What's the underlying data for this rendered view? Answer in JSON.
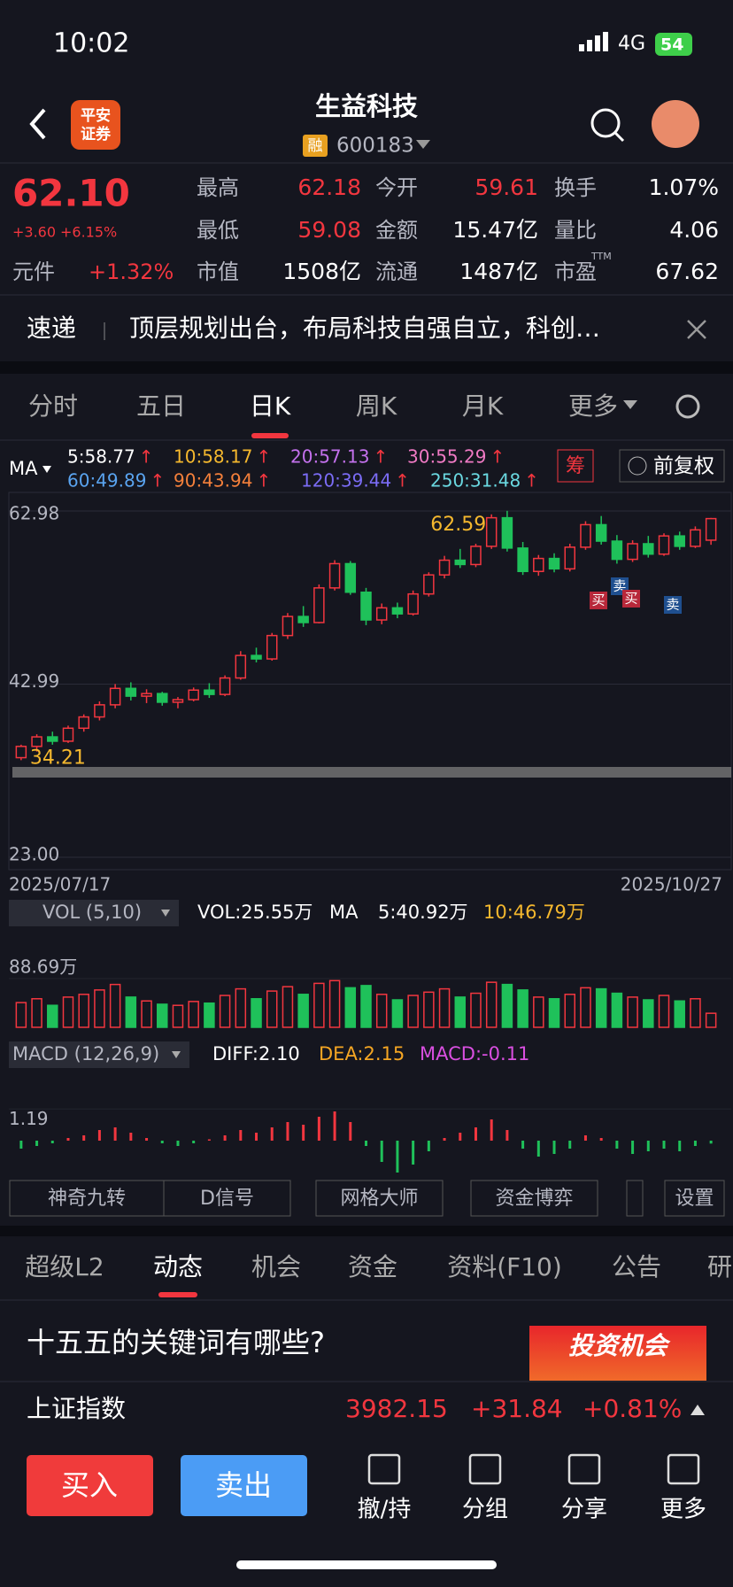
{
  "status_bar": {
    "time": "10:02",
    "network": "4G",
    "battery": "54"
  },
  "header": {
    "logo_top": "平安",
    "logo_bottom": "证券",
    "title": "生益科技",
    "margin_tag": "融",
    "code": "600183"
  },
  "quote": {
    "price": "62.10",
    "change": "+3.60",
    "change_pct": "+6.15%",
    "sector": "元件",
    "sector_change": "+1.32%",
    "stats": [
      {
        "label": "最高",
        "value": "62.18",
        "color": "#f2363f"
      },
      {
        "label": "今开",
        "value": "59.61",
        "color": "#f2363f"
      },
      {
        "label": "换手",
        "value": "1.07%",
        "color": "#ffffff"
      },
      {
        "label": "最低",
        "value": "59.08",
        "color": "#f2363f"
      },
      {
        "label": "金额",
        "value": "15.47亿",
        "color": "#ffffff"
      },
      {
        "label": "量比",
        "value": "4.06",
        "color": "#ffffff"
      },
      {
        "label": "市值",
        "value": "1508亿",
        "color": "#ffffff"
      },
      {
        "label": "流通",
        "value": "1487亿",
        "color": "#ffffff"
      },
      {
        "label": "市盈",
        "value": "67.62",
        "color": "#ffffff"
      }
    ],
    "pe_superscript": "TTM"
  },
  "news": {
    "tag": "速递",
    "text": "顶层规划出台，布局科技自强自立，科创…"
  },
  "chart_tabs": {
    "items": [
      "分时",
      "五日",
      "日K",
      "周K",
      "月K",
      "更多"
    ],
    "active": 2
  },
  "ma_legend": {
    "label": "MA",
    "items": [
      {
        "text": "5:58.77",
        "color": "#ffffff",
        "arrow": "↑"
      },
      {
        "text": "10:58.17",
        "color": "#f5b82e",
        "arrow": "↑"
      },
      {
        "text": "20:57.13",
        "color": "#c471ed",
        "arrow": "↑"
      },
      {
        "text": "30:55.29",
        "color": "#f07ac4",
        "arrow": "↑"
      },
      {
        "text": "60:49.89",
        "color": "#5aa4f0",
        "arrow": "↑"
      },
      {
        "text": "90:43.94",
        "color": "#f5803b",
        "arrow": "↑"
      },
      {
        "text": "120:39.44",
        "color": "#7b6cf5",
        "arrow": "↑"
      },
      {
        "text": "250:31.48",
        "color": "#6ad8e0",
        "arrow": "↑"
      }
    ],
    "chip": "筹",
    "adjust": "前复权"
  },
  "chart_data": [
    {
      "type": "candlestick",
      "up_color": "#f2363f",
      "down_color": "#1fc15a",
      "ylim": [
        23,
        62.98
      ],
      "yticks": [
        62.98,
        42.99,
        {
          "value": 23,
          "label": "23.00"
        }
      ],
      "x_start": "2025/07/17",
      "x_end": "2025/10/27",
      "high_label": 62.59,
      "low_label": 34.21,
      "label_color": "#f5b82e",
      "signals": [
        {
          "text": "卖",
          "color": "#1f4f8f"
        },
        {
          "text": "买",
          "color": "#b8283a"
        },
        {
          "text": "买",
          "color": "#b8283a"
        },
        {
          "text": "卖",
          "color": "#1f4f8f"
        }
      ],
      "ohlc": [
        [
          34.5,
          36,
          34.21,
          35.8
        ],
        [
          35.8,
          37.2,
          35.2,
          36.9
        ],
        [
          36.9,
          37.5,
          36,
          36.4
        ],
        [
          36.4,
          38.2,
          36.2,
          37.9
        ],
        [
          37.9,
          39.5,
          37.5,
          39.2
        ],
        [
          39.2,
          41,
          38.8,
          40.6
        ],
        [
          40.6,
          43,
          40.2,
          42.5
        ],
        [
          42.5,
          43.2,
          41.1,
          41.6
        ],
        [
          41.6,
          42.4,
          40.8,
          41.9
        ],
        [
          41.9,
          42.1,
          40.5,
          40.9
        ],
        [
          40.9,
          41.5,
          40.2,
          41.2
        ],
        [
          41.2,
          42.6,
          41,
          42.3
        ],
        [
          42.3,
          43.1,
          41.4,
          41.8
        ],
        [
          41.8,
          44,
          41.6,
          43.7
        ],
        [
          43.7,
          46.8,
          43.5,
          46.3
        ],
        [
          46.3,
          47.2,
          45.5,
          45.9
        ],
        [
          45.9,
          48.9,
          45.7,
          48.6
        ],
        [
          48.6,
          51.2,
          48.2,
          50.8
        ],
        [
          50.8,
          52,
          49.6,
          50.1
        ],
        [
          50.1,
          54.5,
          50,
          54.1
        ],
        [
          54.1,
          57.3,
          53.8,
          56.9
        ],
        [
          56.9,
          57.2,
          53.3,
          53.6
        ],
        [
          53.6,
          54.1,
          49.8,
          50.4
        ],
        [
          50.4,
          52.3,
          49.9,
          51.8
        ],
        [
          51.8,
          52.4,
          50.6,
          51.1
        ],
        [
          51.1,
          53.8,
          50.9,
          53.4
        ],
        [
          53.4,
          55.9,
          53.1,
          55.6
        ],
        [
          55.6,
          57.8,
          55.2,
          57.3
        ],
        [
          57.3,
          58.6,
          56.4,
          56.8
        ],
        [
          56.8,
          59.2,
          56.5,
          58.9
        ],
        [
          58.9,
          62.59,
          58.6,
          62.2
        ],
        [
          62.2,
          63,
          58.3,
          58.7
        ],
        [
          58.7,
          59.4,
          55.6,
          56
        ],
        [
          56,
          57.9,
          55.5,
          57.5
        ],
        [
          57.5,
          58.1,
          55.9,
          56.3
        ],
        [
          56.3,
          59.2,
          56,
          58.8
        ],
        [
          58.8,
          61.8,
          58.5,
          61.4
        ],
        [
          61.4,
          62.4,
          59.1,
          59.5
        ],
        [
          59.5,
          60.2,
          56.9,
          57.4
        ],
        [
          57.4,
          59.6,
          57.1,
          59.2
        ],
        [
          59.2,
          60.1,
          57.6,
          58
        ],
        [
          58,
          60.4,
          57.8,
          60.1
        ],
        [
          60.1,
          60.6,
          58.5,
          58.9
        ],
        [
          58.9,
          61.2,
          58.7,
          60.8
        ],
        [
          59.61,
          62.18,
          59.08,
          62.1
        ]
      ]
    },
    {
      "type": "bar",
      "indicator": "VOL (5,10)",
      "readout": "VOL:25.55万",
      "ma_label": "MA",
      "ma5": "5:40.92万",
      "ma10": "10:46.79万",
      "ma10_color": "#f5b82e",
      "up_color": "#f2363f",
      "down_color": "#1fc15a",
      "ylim": [
        0,
        100
      ],
      "yticks": [
        {
          "value": 88.69,
          "label": "88.69万"
        }
      ],
      "values": [
        45,
        52,
        40,
        55,
        60,
        68,
        78,
        55,
        48,
        42,
        40,
        47,
        44,
        58,
        70,
        52,
        66,
        74,
        60,
        80,
        85,
        72,
        76,
        60,
        50,
        58,
        64,
        70,
        55,
        62,
        82,
        78,
        68,
        55,
        52,
        60,
        72,
        70,
        62,
        55,
        50,
        58,
        48,
        52,
        25.55
      ]
    },
    {
      "type": "bar",
      "indicator": "MACD (12,26,9)",
      "diff": "DIFF:2.10",
      "dea": "DEA:2.15",
      "macd": "MACD:-0.11",
      "diff_color": "#ffffff",
      "dea_color": "#f5a623",
      "macd_color": "#d94fe0",
      "up_color": "#f2363f",
      "down_color": "#1fc15a",
      "ylim": [
        -1.6,
        1.6
      ],
      "yticks": [
        1.19
      ],
      "values": [
        -0.3,
        -0.2,
        -0.1,
        0.1,
        0.2,
        0.4,
        0.5,
        0.3,
        0.1,
        -0.1,
        -0.2,
        -0.1,
        0.05,
        0.2,
        0.4,
        0.3,
        0.5,
        0.7,
        0.6,
        0.9,
        1.1,
        0.7,
        -0.2,
        -0.8,
        -1.2,
        -0.9,
        -0.4,
        0.1,
        0.3,
        0.5,
        0.8,
        0.4,
        -0.3,
        -0.6,
        -0.5,
        -0.3,
        0.2,
        0.1,
        -0.3,
        -0.5,
        -0.4,
        -0.3,
        -0.4,
        -0.2,
        -0.11
      ]
    }
  ],
  "tools": [
    "神奇九转",
    "D信号",
    "网格大师",
    "资金博弈",
    "设置"
  ],
  "info_tabs": {
    "items": [
      "超级L2",
      "动态",
      "机会",
      "资金",
      "资料(F10)",
      "公告",
      "研"
    ],
    "active": 1
  },
  "feed": {
    "headline": "十五五的关键词有哪些?",
    "banner": "投资机会"
  },
  "index": {
    "name": "上证指数",
    "value": "3982.15",
    "change": "+31.84",
    "change_pct": "+0.81%"
  },
  "actions": {
    "buy": "买入",
    "sell": "卖出",
    "items": [
      "撤/持",
      "分组",
      "分享",
      "更多"
    ]
  }
}
